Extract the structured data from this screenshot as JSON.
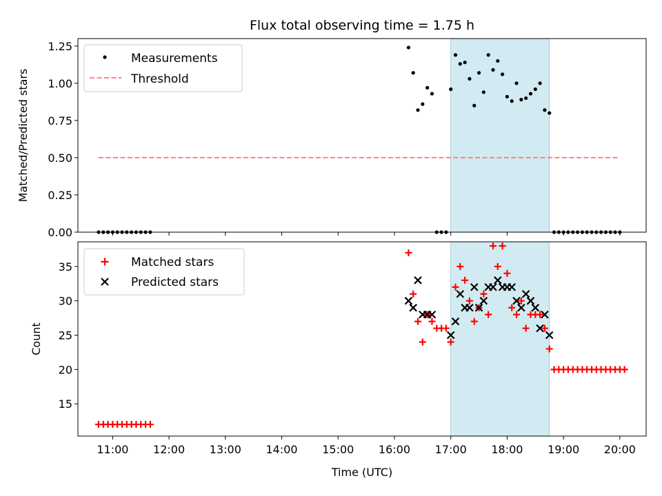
{
  "chart_data": [
    {
      "type": "scatter",
      "title": "Flux total observing time = 1.75 h",
      "ylabel": "Matched/Predicted stars",
      "xlabel": "",
      "xlim": [
        "10:23",
        "20:28"
      ],
      "ylim": [
        0,
        1.3
      ],
      "yticks": [
        "0.00",
        "0.25",
        "0.50",
        "0.75",
        "1.00",
        "1.25"
      ],
      "highlight_span": {
        "start": "17:00",
        "end": "18:45",
        "color": "#add8e6"
      },
      "legend": {
        "placement": "top-left",
        "entries": [
          "Measurements",
          "Threshold"
        ]
      },
      "threshold": {
        "name": "Threshold",
        "value": 0.5,
        "x_range": [
          "10:45",
          "20:00"
        ],
        "color": "#ff8080"
      },
      "series": [
        {
          "name": "Measurements",
          "color": "#000000",
          "points": [
            [
              "10:45",
              0
            ],
            [
              "10:50",
              0
            ],
            [
              "10:55",
              0
            ],
            [
              "11:00",
              0
            ],
            [
              "11:05",
              0
            ],
            [
              "11:10",
              0
            ],
            [
              "11:15",
              0
            ],
            [
              "11:20",
              0
            ],
            [
              "11:25",
              0
            ],
            [
              "11:30",
              0
            ],
            [
              "11:35",
              0
            ],
            [
              "11:40",
              0
            ],
            [
              "16:15",
              1.24
            ],
            [
              "16:20",
              1.07
            ],
            [
              "16:25",
              0.82
            ],
            [
              "16:30",
              0.86
            ],
            [
              "16:35",
              0.97
            ],
            [
              "16:40",
              0.93
            ],
            [
              "16:45",
              0
            ],
            [
              "16:50",
              0
            ],
            [
              "16:55",
              0
            ],
            [
              "17:00",
              0.96
            ],
            [
              "17:05",
              1.19
            ],
            [
              "17:10",
              1.13
            ],
            [
              "17:15",
              1.14
            ],
            [
              "17:20",
              1.03
            ],
            [
              "17:25",
              0.85
            ],
            [
              "17:30",
              1.07
            ],
            [
              "17:35",
              0.94
            ],
            [
              "17:40",
              1.19
            ],
            [
              "17:45",
              1.09
            ],
            [
              "17:50",
              1.15
            ],
            [
              "17:55",
              1.06
            ],
            [
              "18:00",
              0.91
            ],
            [
              "18:05",
              0.88
            ],
            [
              "18:10",
              1.0
            ],
            [
              "18:15",
              0.89
            ],
            [
              "18:20",
              0.9
            ],
            [
              "18:25",
              0.93
            ],
            [
              "18:30",
              0.96
            ],
            [
              "18:35",
              1.0
            ],
            [
              "18:40",
              0.82
            ],
            [
              "18:45",
              0.8
            ],
            [
              "18:50",
              0
            ],
            [
              "18:55",
              0
            ],
            [
              "19:00",
              0
            ],
            [
              "19:05",
              0
            ],
            [
              "19:10",
              0
            ],
            [
              "19:15",
              0
            ],
            [
              "19:20",
              0
            ],
            [
              "19:25",
              0
            ],
            [
              "19:30",
              0
            ],
            [
              "19:35",
              0
            ],
            [
              "19:40",
              0
            ],
            [
              "19:45",
              0
            ],
            [
              "19:50",
              0
            ],
            [
              "19:55",
              0
            ],
            [
              "20:00",
              0
            ]
          ]
        }
      ]
    },
    {
      "type": "scatter",
      "title": "",
      "ylabel": "Count",
      "xlabel": "Time (UTC)",
      "xlim": [
        "10:23",
        "20:28"
      ],
      "ylim": [
        10.3,
        38.6
      ],
      "yticks": [
        "15",
        "20",
        "25",
        "30",
        "35"
      ],
      "xticks": [
        "11:00",
        "12:00",
        "13:00",
        "14:00",
        "15:00",
        "16:00",
        "17:00",
        "18:00",
        "19:00",
        "20:00"
      ],
      "highlight_span": {
        "start": "17:00",
        "end": "18:45",
        "color": "#add8e6"
      },
      "legend": {
        "placement": "top-left",
        "entries": [
          "Matched stars",
          "Predicted stars"
        ]
      },
      "series": [
        {
          "name": "Matched stars",
          "marker": "plus",
          "color": "#ff0000",
          "points": [
            [
              "10:45",
              12
            ],
            [
              "10:50",
              12
            ],
            [
              "10:55",
              12
            ],
            [
              "11:00",
              12
            ],
            [
              "11:05",
              12
            ],
            [
              "11:10",
              12
            ],
            [
              "11:15",
              12
            ],
            [
              "11:20",
              12
            ],
            [
              "11:25",
              12
            ],
            [
              "11:30",
              12
            ],
            [
              "11:35",
              12
            ],
            [
              "11:40",
              12
            ],
            [
              "16:15",
              37
            ],
            [
              "16:20",
              31
            ],
            [
              "16:25",
              27
            ],
            [
              "16:30",
              24
            ],
            [
              "16:35",
              28
            ],
            [
              "16:40",
              27
            ],
            [
              "16:45",
              26
            ],
            [
              "16:50",
              26
            ],
            [
              "16:55",
              26
            ],
            [
              "17:00",
              24
            ],
            [
              "17:05",
              32
            ],
            [
              "17:10",
              35
            ],
            [
              "17:15",
              33
            ],
            [
              "17:20",
              30
            ],
            [
              "17:25",
              27
            ],
            [
              "17:30",
              29
            ],
            [
              "17:35",
              31
            ],
            [
              "17:40",
              28
            ],
            [
              "17:45",
              38
            ],
            [
              "17:50",
              35
            ],
            [
              "17:55",
              38
            ],
            [
              "18:00",
              34
            ],
            [
              "18:05",
              29
            ],
            [
              "18:10",
              28
            ],
            [
              "18:15",
              30
            ],
            [
              "18:20",
              26
            ],
            [
              "18:25",
              28
            ],
            [
              "18:30",
              28
            ],
            [
              "18:35",
              28
            ],
            [
              "18:40",
              26
            ],
            [
              "18:45",
              23
            ],
            [
              "18:50",
              20
            ],
            [
              "18:55",
              20
            ],
            [
              "19:00",
              20
            ],
            [
              "19:05",
              20
            ],
            [
              "19:10",
              20
            ],
            [
              "19:15",
              20
            ],
            [
              "19:20",
              20
            ],
            [
              "19:25",
              20
            ],
            [
              "19:30",
              20
            ],
            [
              "19:35",
              20
            ],
            [
              "19:40",
              20
            ],
            [
              "19:45",
              20
            ],
            [
              "19:50",
              20
            ],
            [
              "19:55",
              20
            ],
            [
              "20:00",
              20
            ],
            [
              "20:05",
              20
            ]
          ]
        },
        {
          "name": "Predicted stars",
          "marker": "x",
          "color": "#000000",
          "points": [
            [
              "16:15",
              30
            ],
            [
              "16:20",
              29
            ],
            [
              "16:25",
              33
            ],
            [
              "16:30",
              28
            ],
            [
              "16:35",
              28
            ],
            [
              "16:40",
              28
            ],
            [
              "17:00",
              25
            ],
            [
              "17:05",
              27
            ],
            [
              "17:10",
              31
            ],
            [
              "17:15",
              29
            ],
            [
              "17:20",
              29
            ],
            [
              "17:25",
              32
            ],
            [
              "17:30",
              29
            ],
            [
              "17:35",
              30
            ],
            [
              "17:40",
              32
            ],
            [
              "17:45",
              32
            ],
            [
              "17:50",
              33
            ],
            [
              "17:55",
              32
            ],
            [
              "18:00",
              32
            ],
            [
              "18:05",
              32
            ],
            [
              "18:10",
              30
            ],
            [
              "18:15",
              29
            ],
            [
              "18:20",
              31
            ],
            [
              "18:25",
              30
            ],
            [
              "18:30",
              29
            ],
            [
              "18:35",
              26
            ],
            [
              "18:40",
              28
            ],
            [
              "18:45",
              25
            ]
          ]
        }
      ]
    }
  ]
}
